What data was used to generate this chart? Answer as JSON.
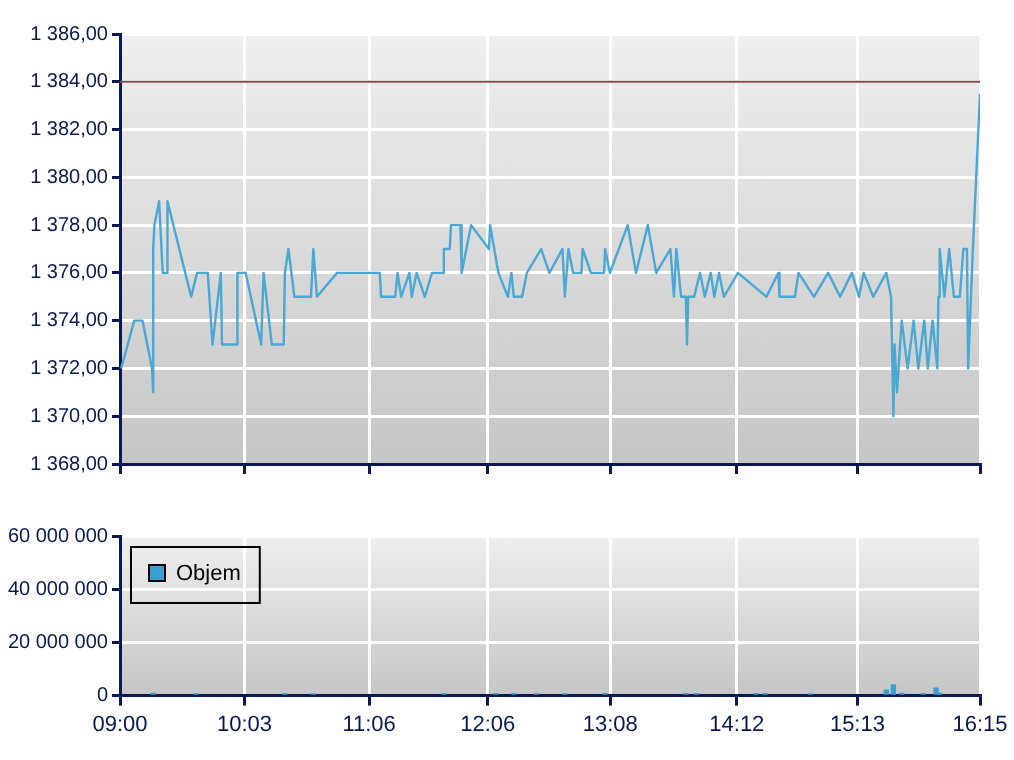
{
  "chart_data": [
    {
      "type": "line",
      "x": [
        9.01,
        9.12,
        9.19,
        9.27,
        9.28,
        9.28,
        9.29,
        9.33,
        9.36,
        9.39,
        9.4,
        9.6,
        9.65,
        9.74,
        9.78,
        9.85,
        9.86,
        9.98,
        9.99,
        10.06,
        10.19,
        10.21,
        10.28,
        10.38,
        10.39,
        10.42,
        10.47,
        10.61,
        10.63,
        10.66,
        10.83,
        11.19,
        11.2,
        11.32,
        11.34,
        11.37,
        11.44,
        11.46,
        11.5,
        11.57,
        11.63,
        11.72,
        11.73,
        11.78,
        11.79,
        11.87,
        11.88,
        11.96,
        12.11,
        12.12,
        12.19,
        12.27,
        12.3,
        12.32,
        12.39,
        12.43,
        12.55,
        12.62,
        12.73,
        12.75,
        12.78,
        12.82,
        12.89,
        12.9,
        12.97,
        13.08,
        13.09,
        13.13,
        13.28,
        13.35,
        13.45,
        13.52,
        13.64,
        13.67,
        13.69,
        13.73,
        13.77,
        13.78,
        13.79,
        13.84,
        13.89,
        13.93,
        13.98,
        14.01,
        14.05,
        14.09,
        14.21,
        14.45,
        14.55,
        14.56,
        14.69,
        14.72,
        14.85,
        14.97,
        15.07,
        15.17,
        15.23,
        15.27,
        15.35,
        15.46,
        15.5,
        15.52,
        15.53,
        15.55,
        15.59,
        15.64,
        15.69,
        15.73,
        15.78,
        15.81,
        15.85,
        15.89,
        15.9,
        15.91,
        15.95,
        15.99,
        16.03,
        16.08,
        16.11,
        16.14,
        16.15,
        16.19,
        16.25
      ],
      "values": [
        1372,
        1374,
        1374,
        1372,
        1371,
        1377,
        1378,
        1379,
        1376,
        1376,
        1379,
        1375,
        1376,
        1376,
        1373,
        1376,
        1373,
        1373,
        1376,
        1376,
        1373,
        1376,
        1373,
        1373,
        1376,
        1377,
        1375,
        1375,
        1377,
        1375,
        1376,
        1376,
        1375,
        1375,
        1376,
        1375,
        1376,
        1375,
        1376,
        1375,
        1376,
        1376,
        1377,
        1377,
        1378,
        1378,
        1376,
        1378,
        1377,
        1378,
        1376,
        1375,
        1376,
        1375,
        1375,
        1376,
        1377,
        1376,
        1377,
        1375,
        1377,
        1376,
        1376,
        1377,
        1376,
        1376,
        1377,
        1376,
        1378,
        1376,
        1378,
        1376,
        1377,
        1375,
        1377,
        1375,
        1375,
        1373,
        1375,
        1375,
        1376,
        1375,
        1376,
        1375,
        1376,
        1375,
        1376,
        1375,
        1376,
        1375,
        1375,
        1376,
        1375,
        1376,
        1375,
        1376,
        1375,
        1376,
        1375,
        1376,
        1375,
        1370,
        1373,
        1371,
        1374,
        1372,
        1374,
        1372,
        1374,
        1372,
        1374,
        1372,
        1375,
        1377,
        1375,
        1377,
        1375,
        1375,
        1377,
        1377,
        1372,
        1377,
        1383.5
      ],
      "color": "#4aa8d4",
      "xlim": [
        9,
        16.25
      ],
      "xticks": [
        {
          "value": 9,
          "label": null
        },
        {
          "value": 10.05,
          "label": null
        },
        {
          "value": 11.1,
          "label": null
        },
        {
          "value": 12.1,
          "label": null
        },
        {
          "value": 13.1333,
          "label": null
        },
        {
          "value": 14.2,
          "label": null
        },
        {
          "value": 15.2167,
          "label": null
        },
        {
          "value": 16.25,
          "label": null
        }
      ],
      "ylim": [
        1368,
        1386
      ],
      "yticks": [
        {
          "value": 1368,
          "label": "1 368,00"
        },
        {
          "value": 1370,
          "label": "1 370,00"
        },
        {
          "value": 1372,
          "label": "1 372,00"
        },
        {
          "value": 1374,
          "label": "1 374,00"
        },
        {
          "value": 1376,
          "label": "1 376,00"
        },
        {
          "value": 1378,
          "label": "1 378,00"
        },
        {
          "value": 1380,
          "label": "1 380,00"
        },
        {
          "value": 1382,
          "label": "1 382,00"
        },
        {
          "value": 1384,
          "label": "1 384,00"
        },
        {
          "value": 1386,
          "label": "1 386,00"
        }
      ],
      "ref_lines": [
        {
          "axis": "y",
          "value": 1384,
          "color": "#8a4a55"
        }
      ],
      "grid": true,
      "tick_labels": "y",
      "marker": "none"
    },
    {
      "type": "bar",
      "x": [
        9.28,
        9.64,
        10.39,
        10.63,
        11.73,
        12.17,
        12.32,
        12.51,
        12.75,
        13.09,
        13.77,
        13.86,
        14.36,
        14.44,
        14.82,
        15.46,
        15.52,
        15.59,
        15.77,
        15.88,
        15.91
      ],
      "series": [
        {
          "name": "Objem",
          "color": "#3a9fd0",
          "values": [
            800000,
            600000,
            600000,
            600000,
            600000,
            700000,
            700000,
            600000,
            600000,
            700000,
            700000,
            700000,
            700000,
            700000,
            600000,
            2000000,
            4000000,
            800000,
            700000,
            2800000,
            800000
          ]
        }
      ],
      "xlim": [
        9,
        16.25
      ],
      "xticks": [
        {
          "value": 9,
          "label": "09:00"
        },
        {
          "value": 10.05,
          "label": "10:03"
        },
        {
          "value": 11.1,
          "label": "11:06"
        },
        {
          "value": 12.1,
          "label": "12:06"
        },
        {
          "value": 13.1333,
          "label": "13:08"
        },
        {
          "value": 14.2,
          "label": "14:12"
        },
        {
          "value": 15.2167,
          "label": "15:13"
        },
        {
          "value": 16.25,
          "label": "16:15"
        }
      ],
      "ylim": [
        0,
        60000000
      ],
      "yticks": [
        0,
        {
          "value": 20000000,
          "label": "20 000 000"
        },
        {
          "value": 40000000,
          "label": "40 000 000"
        },
        {
          "value": 60000000,
          "label": "60 000 000"
        }
      ],
      "grid": true,
      "legend": "top left"
    }
  ]
}
